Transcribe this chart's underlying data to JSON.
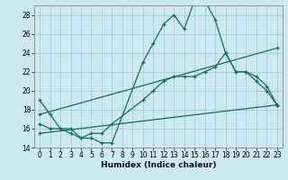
{
  "xlabel": "Humidex (Indice chaleur)",
  "bg_color": "#cce8f0",
  "grid_color": "#aad0dc",
  "line_color": "#1a6b5a",
  "xlim": [
    -0.5,
    23.5
  ],
  "ylim": [
    14,
    29
  ],
  "yticks": [
    14,
    16,
    18,
    20,
    22,
    24,
    26,
    28
  ],
  "xticks": [
    0,
    1,
    2,
    3,
    4,
    5,
    6,
    7,
    8,
    9,
    10,
    11,
    12,
    13,
    14,
    15,
    16,
    17,
    18,
    19,
    20,
    21,
    22,
    23
  ],
  "lines": [
    {
      "x": [
        0,
        1,
        2,
        3,
        4,
        5,
        6,
        7,
        10,
        11,
        12,
        13,
        14,
        15,
        16,
        17,
        18,
        19,
        20,
        21,
        22,
        23
      ],
      "y": [
        19.0,
        17.5,
        16.0,
        16.0,
        15.0,
        15.0,
        14.5,
        14.5,
        23.0,
        25.0,
        27.0,
        28.0,
        26.5,
        29.5,
        29.5,
        27.5,
        24.0,
        22.0,
        22.0,
        21.0,
        20.0,
        18.5
      ]
    },
    {
      "x": [
        0,
        1,
        2,
        3,
        4,
        5,
        6,
        7,
        10,
        11,
        12,
        13,
        14,
        15,
        16,
        17,
        18,
        19,
        20,
        21,
        22,
        23
      ],
      "y": [
        16.5,
        16.0,
        16.0,
        15.5,
        15.0,
        15.5,
        15.5,
        16.5,
        19.0,
        20.0,
        21.0,
        21.5,
        21.5,
        21.5,
        22.0,
        22.5,
        24.0,
        22.0,
        22.0,
        21.5,
        20.5,
        18.5
      ]
    },
    {
      "x": [
        0,
        23
      ],
      "y": [
        17.5,
        24.5
      ]
    },
    {
      "x": [
        0,
        23
      ],
      "y": [
        15.5,
        18.5
      ]
    }
  ]
}
